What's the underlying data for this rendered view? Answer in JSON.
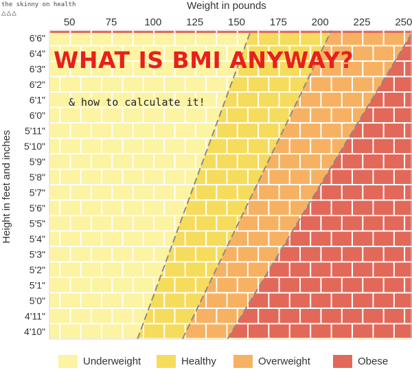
{
  "brand": {
    "name": "the skinny on health",
    "mark": "△△△"
  },
  "headline": "WHAT IS BMI ANYWAY?",
  "subheadline": "& how to calculate it!",
  "colors": {
    "underweight": "#fcf3a3",
    "healthy": "#f6dc5c",
    "overweight": "#f6b262",
    "obese": "#e2695a",
    "grid": "#ffffff",
    "diagonal": "#8a8a8a",
    "headline": "#e8201a"
  },
  "legend": [
    {
      "key": "underweight",
      "label": "Underweight",
      "color": "#fcf3a3"
    },
    {
      "key": "healthy",
      "label": "Healthy",
      "color": "#f6dc5c"
    },
    {
      "key": "overweight",
      "label": "Overweight",
      "color": "#f6b262"
    },
    {
      "key": "obese",
      "label": "Obese",
      "color": "#e2695a"
    }
  ],
  "chart_data": {
    "type": "heatmap",
    "title": "",
    "xlabel": "Weight in pounds",
    "ylabel": "Height in feet and inches",
    "x_ticks": [
      50,
      75,
      100,
      125,
      150,
      175,
      200,
      225,
      250
    ],
    "y_ticks": [
      "6'6\"",
      "6'4\"",
      "6'3\"",
      "6'2\"",
      "6'1\"",
      "6'0\"",
      "5'11\"",
      "5'10\"",
      "5'9\"",
      "5'8\"",
      "5'7\"",
      "5'6\"",
      "5'5\"",
      "5'4\"",
      "5'3\"",
      "5'2\"",
      "5'1\"",
      "5'0\"",
      "4'11\"",
      "4'10\""
    ],
    "xlim": [
      38,
      255
    ],
    "categories": [
      "Underweight",
      "Healthy",
      "Overweight",
      "Obese"
    ],
    "boundaries": [
      {
        "between": [
          "Underweight",
          "Healthy"
        ],
        "at_lowest_height_lb": 91,
        "at_tallest_height_lb": 158
      },
      {
        "between": [
          "Healthy",
          "Overweight"
        ],
        "at_lowest_height_lb": 118,
        "at_tallest_height_lb": 206
      },
      {
        "between": [
          "Overweight",
          "Obese"
        ],
        "at_lowest_height_lb": 145,
        "at_tallest_height_lb": 255
      }
    ],
    "grid": true,
    "legend_position": "bottom"
  }
}
